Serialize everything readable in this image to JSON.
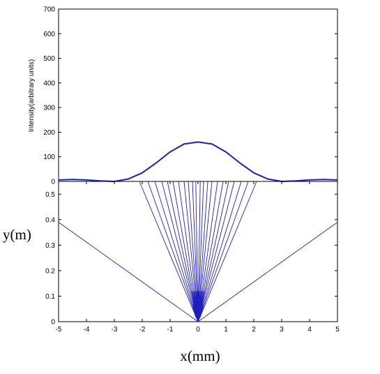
{
  "chart_data": [
    {
      "type": "line",
      "title": "",
      "xlabel": "",
      "ylabel": "Intensity(arbitrary units)",
      "xlim": [
        -5,
        5
      ],
      "ylim": [
        0,
        700
      ],
      "yticks": [
        "0",
        "100",
        "200",
        "300",
        "400",
        "500",
        "600",
        "700"
      ],
      "grid": false,
      "line_color": "#1f1fbf",
      "series": [
        {
          "x": [
            -5,
            -4.5,
            -4,
            -3.5,
            -3,
            -2.5,
            -2,
            -1.5,
            -1,
            -0.5,
            0,
            0.5,
            1,
            1.5,
            2,
            2.5,
            3,
            3.5,
            4,
            4.5,
            5
          ],
          "values": [
            6,
            8,
            6,
            2,
            0,
            10,
            35,
            75,
            120,
            152,
            160,
            152,
            120,
            75,
            35,
            10,
            0,
            2,
            6,
            8,
            6
          ]
        }
      ]
    },
    {
      "type": "line",
      "title": "",
      "xlabel": "x(mm)",
      "ylabel": "y(m)",
      "xlim": [
        -5,
        5
      ],
      "ylim": [
        0,
        0.55
      ],
      "xticks": [
        "-5",
        "-4",
        "-3",
        "-2",
        "-1",
        "0",
        "1",
        "2",
        "3",
        "4",
        "5"
      ],
      "yticks": [
        "0",
        "0.1",
        "0.2",
        "0.3",
        "0.4",
        "0.5"
      ],
      "grid": false,
      "line_color": "#1f1fbf",
      "description_of_rays": "rays emanating from x=0 at y=0",
      "series": [
        {
          "endpoints_x_at_top": [
            -2.1,
            -1.8,
            -1.55,
            -1.3,
            -1.1,
            -0.9,
            -0.7,
            -0.5,
            -0.35,
            -0.2,
            -0.08,
            0.08,
            0.2,
            0.35,
            0.5,
            0.7,
            0.9,
            1.1,
            1.3,
            1.55,
            1.8,
            2.1
          ],
          "outer_rays": [
            {
              "x": [
                -5,
                0
              ],
              "values": [
                0.39,
                0
              ]
            },
            {
              "x": [
                5,
                0
              ],
              "values": [
                0.39,
                0
              ]
            }
          ]
        }
      ]
    }
  ]
}
